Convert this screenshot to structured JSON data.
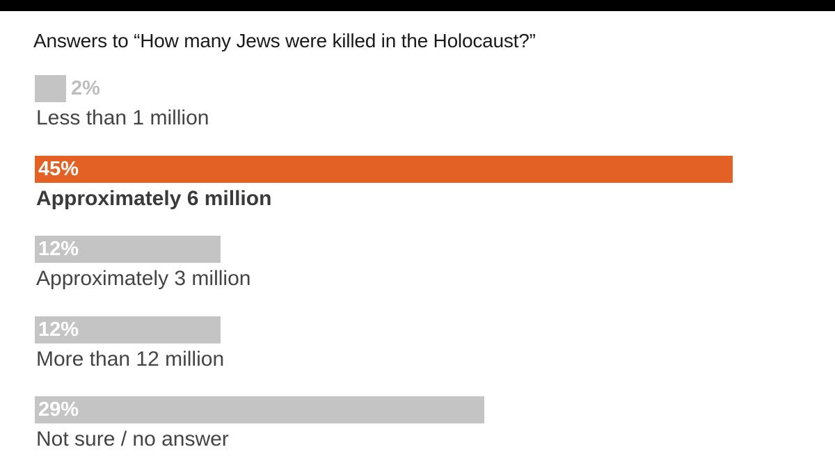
{
  "chart_data": {
    "type": "bar",
    "orientation": "horizontal",
    "title": "Answers to “How many Jews were killed in the Holocaust?”",
    "categories": [
      "Less than 1 million",
      "Approximately 6 million",
      "Approximately 3 million",
      "More than 12 million",
      "Not sure / no answer"
    ],
    "values": [
      2,
      45,
      12,
      12,
      29
    ],
    "value_labels": [
      "2%",
      "45%",
      "12%",
      "12%",
      "29%"
    ],
    "highlight_index": 1,
    "xlim": [
      0,
      45
    ],
    "grid": false,
    "colors": {
      "default_bar": "#c4c4c4",
      "highlight_bar": "#e36124",
      "label_on_bar": "#ffffff",
      "label_outside_bar": "#bdbdbd"
    }
  }
}
